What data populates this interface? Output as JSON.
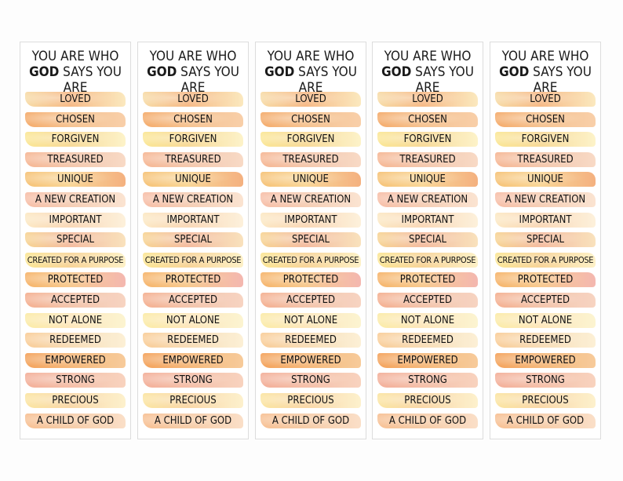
{
  "bookmark": {
    "title_line1": "YOU ARE WHO",
    "title_god": "GOD",
    "title_line2_rest": " SAYS YOU ARE",
    "words": [
      {
        "text": "LOVED",
        "colors": [
          "#f7d9a0",
          "#f6b27a",
          "#fbe7b8"
        ]
      },
      {
        "text": "CHOSEN",
        "colors": [
          "#f4a35c",
          "#f5bd86",
          "#f8caa0"
        ]
      },
      {
        "text": "FORGIVEN",
        "colors": [
          "#fbe58d",
          "#f7d68e",
          "#fdf2c4"
        ]
      },
      {
        "text": "TREASURED",
        "colors": [
          "#f6b08a",
          "#f2c2a4",
          "#f8d6c0"
        ]
      },
      {
        "text": "UNIQUE",
        "colors": [
          "#f6bd6a",
          "#f9d28c",
          "#f3a872"
        ]
      },
      {
        "text": "A NEW CREATION",
        "colors": [
          "#f7b9a0",
          "#f4c8ac",
          "#fbe1cd"
        ]
      },
      {
        "text": "IMPORTANT",
        "colors": [
          "#fce7c0",
          "#f9d4b0",
          "#fdf0d8"
        ]
      },
      {
        "text": "SPECIAL",
        "colors": [
          "#f7d08a",
          "#f3b596",
          "#f9dfb6"
        ]
      },
      {
        "text": "CREATED FOR A PURPOSE",
        "colors": [
          "#fbe48c",
          "#f7cf8d",
          "#fdf0c2"
        ]
      },
      {
        "text": "PROTECTED",
        "colors": [
          "#f6ad5c",
          "#f7c483",
          "#f3b0a8"
        ]
      },
      {
        "text": "ACCEPTED",
        "colors": [
          "#f4a886",
          "#f2bfa3",
          "#f7d0bc"
        ]
      },
      {
        "text": "NOT ALONE",
        "colors": [
          "#fbeaa0",
          "#fde4b5",
          "#fcf3cc"
        ]
      },
      {
        "text": "REDEEMED",
        "colors": [
          "#f9c98f",
          "#f7d9b0",
          "#fcefd2"
        ]
      },
      {
        "text": "EMPOWERED",
        "colors": [
          "#f39a4c",
          "#f4b06c",
          "#f7c690"
        ]
      },
      {
        "text": "STRONG",
        "colors": [
          "#f2a890",
          "#f4b9a0",
          "#f8cfb8"
        ]
      },
      {
        "text": "PRECIOUS",
        "colors": [
          "#fbe39a",
          "#f9d39f",
          "#fdf0c8"
        ]
      },
      {
        "text": "A CHILD OF GOD",
        "colors": [
          "#f7bb8a",
          "#f6c8a0",
          "#fadcc2"
        ]
      }
    ]
  },
  "copies": [
    "bookmark-1",
    "bookmark-2",
    "bookmark-3",
    "bookmark-4",
    "bookmark-5"
  ]
}
